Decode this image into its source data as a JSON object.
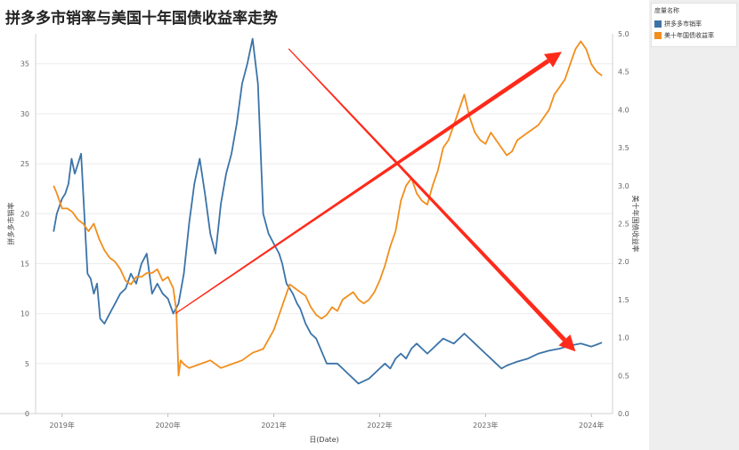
{
  "title": "拼多多市销率与美国十年国债收益率走势",
  "legend": {
    "title": "度量名称",
    "items": [
      {
        "label": "拼多多市销率",
        "color": "#3b73a8"
      },
      {
        "label": "美十年国债收益率",
        "color": "#f28e1c"
      }
    ]
  },
  "chart_data": {
    "type": "line",
    "title": "拼多多市销率与美国十年国债收益率走势",
    "xlabel": "日(Date)",
    "ylabel_left": "拼多多市销率",
    "ylabel_right": "美十年国债收益率",
    "x_ticks": [
      "2019年",
      "2020年",
      "2021年",
      "2022年",
      "2023年",
      "2024年"
    ],
    "y_left_ticks": [
      "0",
      "5",
      "10",
      "15",
      "20",
      "25",
      "30",
      "35"
    ],
    "y_right_ticks": [
      "0.0",
      "0.5",
      "1.0",
      "1.5",
      "2.0",
      "2.5",
      "3.0",
      "3.5",
      "4.0",
      "4.5",
      "5.0"
    ],
    "ylim_left": [
      0,
      38
    ],
    "ylim_right": [
      0,
      5.0
    ],
    "xlim": [
      2018.75,
      2024.2
    ],
    "grid": true,
    "legend_position": "right",
    "series": [
      {
        "name": "拼多多市销率",
        "axis": "left",
        "color": "#3b73a8",
        "x": [
          2018.92,
          2018.95,
          2019.0,
          2019.03,
          2019.06,
          2019.09,
          2019.12,
          2019.15,
          2019.18,
          2019.21,
          2019.24,
          2019.27,
          2019.3,
          2019.33,
          2019.36,
          2019.4,
          2019.45,
          2019.5,
          2019.55,
          2019.6,
          2019.65,
          2019.7,
          2019.75,
          2019.8,
          2019.85,
          2019.9,
          2019.95,
          2020.0,
          2020.05,
          2020.1,
          2020.15,
          2020.2,
          2020.25,
          2020.3,
          2020.35,
          2020.4,
          2020.45,
          2020.5,
          2020.55,
          2020.6,
          2020.65,
          2020.7,
          2020.75,
          2020.8,
          2020.85,
          2020.9,
          2020.95,
          2021.0,
          2021.05,
          2021.08,
          2021.1,
          2021.12,
          2021.15,
          2021.18,
          2021.2,
          2021.22,
          2021.25,
          2021.3,
          2021.35,
          2021.4,
          2021.5,
          2021.6,
          2021.7,
          2021.8,
          2021.9,
          2022.0,
          2022.05,
          2022.1,
          2022.15,
          2022.2,
          2022.25,
          2022.3,
          2022.35,
          2022.4,
          2022.45,
          2022.5,
          2022.55,
          2022.6,
          2022.7,
          2022.8,
          2022.9,
          2023.0,
          2023.05,
          2023.1,
          2023.15,
          2023.2,
          2023.25,
          2023.3,
          2023.4,
          2023.5,
          2023.6,
          2023.7,
          2023.8,
          2023.9,
          2024.0,
          2024.05,
          2024.1
        ],
        "values": [
          18.2,
          20,
          21.5,
          22,
          23,
          25.5,
          24,
          25,
          26,
          20,
          14,
          13.5,
          12,
          13,
          9.5,
          9,
          10,
          11,
          12,
          12.5,
          14,
          13,
          15,
          16,
          12,
          13,
          12,
          11.5,
          10,
          11,
          14,
          19,
          23,
          25.5,
          22,
          18,
          16,
          21,
          24,
          26,
          29,
          33,
          35,
          37.5,
          33,
          20,
          18,
          17,
          16,
          15,
          14,
          13,
          12.5,
          12,
          11.5,
          11,
          10.5,
          9,
          8,
          7.5,
          5,
          5,
          4,
          3,
          3.5,
          4.5,
          5,
          4.5,
          5.5,
          6,
          5.5,
          6.5,
          7,
          6.5,
          6,
          6.5,
          7,
          7.5,
          7,
          8,
          7,
          6,
          5.5,
          5,
          4.5,
          4.8,
          5,
          5.2,
          5.5,
          6,
          6.3,
          6.5,
          6.8,
          7,
          6.7,
          6.9,
          7.1
        ],
        "_note": ""
      },
      {
        "name": "美十年国债收益率",
        "axis": "right",
        "color": "#f28e1c",
        "x": [
          2018.92,
          2018.95,
          2019.0,
          2019.05,
          2019.1,
          2019.15,
          2019.2,
          2019.25,
          2019.3,
          2019.35,
          2019.4,
          2019.45,
          2019.5,
          2019.55,
          2019.6,
          2019.65,
          2019.7,
          2019.75,
          2019.8,
          2019.85,
          2019.9,
          2019.95,
          2020.0,
          2020.05,
          2020.08,
          2020.1,
          2020.12,
          2020.15,
          2020.2,
          2020.3,
          2020.4,
          2020.5,
          2020.6,
          2020.7,
          2020.8,
          2020.9,
          2021.0,
          2021.05,
          2021.1,
          2021.15,
          2021.2,
          2021.25,
          2021.3,
          2021.35,
          2021.4,
          2021.45,
          2021.5,
          2021.55,
          2021.6,
          2021.65,
          2021.7,
          2021.75,
          2021.8,
          2021.85,
          2021.9,
          2021.95,
          2022.0,
          2022.05,
          2022.1,
          2022.15,
          2022.2,
          2022.25,
          2022.3,
          2022.35,
          2022.4,
          2022.45,
          2022.5,
          2022.55,
          2022.6,
          2022.65,
          2022.7,
          2022.75,
          2022.8,
          2022.85,
          2022.9,
          2022.95,
          2023.0,
          2023.05,
          2023.1,
          2023.15,
          2023.2,
          2023.25,
          2023.3,
          2023.4,
          2023.5,
          2023.6,
          2023.65,
          2023.7,
          2023.75,
          2023.8,
          2023.85,
          2023.9,
          2023.95,
          2024.0,
          2024.05,
          2024.1
        ],
        "values": [
          3.0,
          2.9,
          2.7,
          2.7,
          2.65,
          2.55,
          2.5,
          2.4,
          2.5,
          2.3,
          2.15,
          2.05,
          2.0,
          1.9,
          1.75,
          1.7,
          1.8,
          1.8,
          1.85,
          1.85,
          1.9,
          1.75,
          1.8,
          1.65,
          1.35,
          0.5,
          0.7,
          0.65,
          0.6,
          0.65,
          0.7,
          0.6,
          0.65,
          0.7,
          0.8,
          0.85,
          1.1,
          1.3,
          1.5,
          1.7,
          1.65,
          1.6,
          1.55,
          1.4,
          1.3,
          1.25,
          1.3,
          1.4,
          1.35,
          1.5,
          1.55,
          1.6,
          1.5,
          1.45,
          1.5,
          1.6,
          1.75,
          1.95,
          2.2,
          2.4,
          2.8,
          3.0,
          3.1,
          2.9,
          2.8,
          2.75,
          3.0,
          3.2,
          3.5,
          3.6,
          3.8,
          4.0,
          4.2,
          3.9,
          3.7,
          3.6,
          3.55,
          3.7,
          3.6,
          3.5,
          3.4,
          3.45,
          3.6,
          3.7,
          3.8,
          4.0,
          4.2,
          4.3,
          4.4,
          4.6,
          4.8,
          4.9,
          4.8,
          4.6,
          4.5,
          4.45
        ]
      }
    ],
    "arrows": [
      {
        "from": [
          2020.07,
          10.0
        ],
        "to": [
          2023.72,
          36.2
        ],
        "color": "#ff2a1a"
      },
      {
        "from": [
          2021.14,
          36.5
        ],
        "to": [
          2023.85,
          6.2
        ],
        "color": "#ff2a1a"
      }
    ]
  }
}
